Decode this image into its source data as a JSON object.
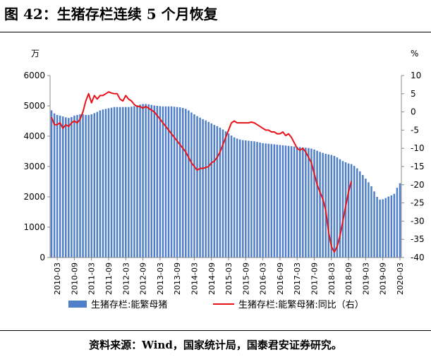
{
  "header": {
    "title": "图 42：生猪存栏连续 5 个月恢复"
  },
  "footer": {
    "source": "资料来源：Wind，国家统计局，国泰君安证券研究。"
  },
  "chart_data": {
    "type": "bar",
    "left_unit": "万",
    "right_unit": "%",
    "ylim_left": [
      0,
      6000
    ],
    "yticks_left": [
      0,
      1000,
      2000,
      3000,
      4000,
      5000,
      6000
    ],
    "ylim_right": [
      -40,
      10
    ],
    "yticks_right": [
      -40,
      -35,
      -30,
      -25,
      -20,
      -15,
      -10,
      -5,
      0,
      5,
      10
    ],
    "x_tick_labels": [
      "2010-03",
      "2010-09",
      "2011-03",
      "2011-09",
      "2012-03",
      "2012-09",
      "2013-03",
      "2013-09",
      "2014-03",
      "2014-09",
      "2015-03",
      "2015-09",
      "2016-03",
      "2016-09",
      "2017-03",
      "2017-09",
      "2018-03",
      "2018-09",
      "2019-03",
      "2019-09",
      "2020-03"
    ],
    "x_start": "2010-01",
    "legend_position": "bottom",
    "series": [
      {
        "name": "生猪存栏:能繁母猪",
        "type": "bar",
        "axis": "left",
        "color": "#4f7fc8",
        "values": [
          4850,
          4750,
          4700,
          4680,
          4650,
          4620,
          4600,
          4630,
          4680,
          4700,
          4720,
          4720,
          4700,
          4700,
          4720,
          4760,
          4800,
          4850,
          4880,
          4900,
          4920,
          4940,
          4960,
          4960,
          4960,
          4960,
          4960,
          4960,
          4970,
          4990,
          5020,
          5040,
          5060,
          5060,
          5050,
          5030,
          5010,
          5000,
          4990,
          4980,
          4980,
          4980,
          4980,
          4970,
          4960,
          4950,
          4930,
          4900,
          4850,
          4780,
          4720,
          4660,
          4610,
          4560,
          4520,
          4470,
          4420,
          4370,
          4330,
          4280,
          4220,
          4160,
          4090,
          4020,
          3960,
          3920,
          3890,
          3870,
          3860,
          3850,
          3840,
          3830,
          3810,
          3790,
          3770,
          3760,
          3750,
          3740,
          3730,
          3720,
          3710,
          3700,
          3690,
          3680,
          3670,
          3660,
          3650,
          3640,
          3630,
          3620,
          3610,
          3590,
          3560,
          3520,
          3480,
          3450,
          3420,
          3400,
          3380,
          3350,
          3300,
          3240,
          3180,
          3140,
          3100,
          3080,
          3020,
          2940,
          2840,
          2720,
          2600,
          2480,
          2350,
          2180,
          2000,
          1910,
          1920,
          1960,
          2010,
          2050,
          2100,
          2300,
          2450
        ]
      },
      {
        "name": "生猪存栏:能繁母猪:同比（右）",
        "type": "line",
        "axis": "right",
        "color": "#e8141a",
        "values": [
          -1.5,
          -3.5,
          -3.5,
          -3,
          -4.5,
          -3.5,
          -4,
          -3,
          -2.5,
          -3,
          -2,
          0,
          3,
          5,
          2.5,
          4.5,
          3.5,
          4.5,
          4.5,
          5,
          5.5,
          5.2,
          5,
          5,
          3.5,
          3,
          4.5,
          3.5,
          3,
          2,
          1.5,
          1.5,
          1,
          1.5,
          1,
          0.5,
          0,
          -1,
          -2,
          -3,
          -4,
          -5,
          -6,
          -7,
          -8,
          -9,
          -10,
          -11,
          -12.5,
          -14,
          -15,
          -16,
          -15.5,
          -15.5,
          -15.3,
          -15,
          -14,
          -13.5,
          -12.5,
          -11,
          -9,
          -7,
          -5,
          -3,
          -2.5,
          -3,
          -3,
          -3,
          -3,
          -3,
          -2.8,
          -3,
          -3.5,
          -4,
          -4.5,
          -5,
          -5,
          -5.5,
          -5.5,
          -6,
          -6,
          -5.5,
          -6.5,
          -6,
          -7,
          -8.5,
          -10,
          -10.5,
          -10,
          -11,
          -12.5,
          -14,
          -17,
          -20,
          -22,
          -24,
          -27,
          -33,
          -37,
          -38.5,
          -37,
          -34,
          -30,
          -26,
          -22,
          -19
        ]
      }
    ]
  }
}
